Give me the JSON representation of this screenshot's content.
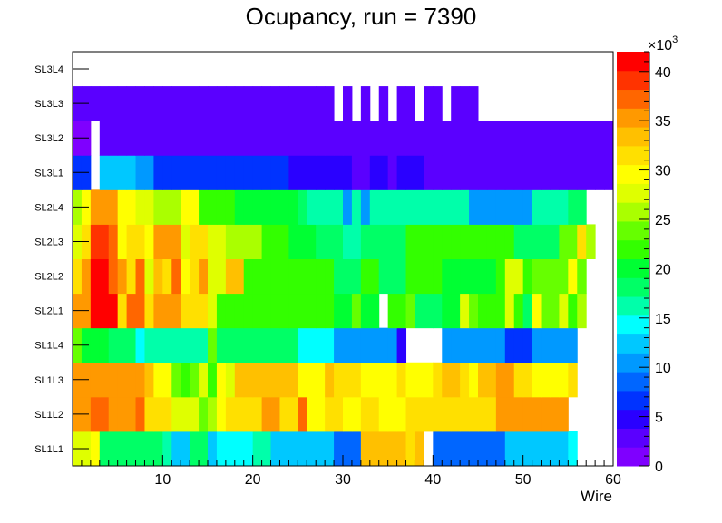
{
  "chart_data": {
    "type": "heatmap",
    "title": "Ocupancy, run = 7390",
    "xlabel": "Wire",
    "ylabel": "",
    "x_range": [
      0,
      60
    ],
    "x_ticks": [
      10,
      20,
      30,
      40,
      50,
      60
    ],
    "rows": [
      "SL1L1",
      "SL1L2",
      "SL1L3",
      "SL1L4",
      "SL2L1",
      "SL2L2",
      "SL2L3",
      "SL2L4",
      "SL3L1",
      "SL3L2",
      "SL3L3",
      "SL3L4"
    ],
    "z_range": [
      0,
      42
    ],
    "z_multiplier_label": "×10",
    "z_multiplier_exp": "3",
    "z_ticks": [
      "0",
      "5",
      "10",
      "15",
      "20",
      "25",
      "30",
      "35",
      "40"
    ],
    "palette": [
      "#7f00ff",
      "#5a00ff",
      "#2a00ff",
      "#0033ff",
      "#0066ff",
      "#0099ff",
      "#00c8ff",
      "#00ffff",
      "#00ffaa",
      "#00ff66",
      "#00ff33",
      "#33ff00",
      "#66ff00",
      "#aaff00",
      "#dfff00",
      "#ffff00",
      "#ffe000",
      "#ffc000",
      "#ff9900",
      "#ff6600",
      "#ff3300",
      "#ff0000"
    ],
    "z": [
      [
        28,
        28,
        29,
        18,
        18,
        18,
        18,
        18,
        18,
        18,
        16,
        13,
        13,
        19,
        18,
        12,
        14,
        14,
        14,
        14,
        16,
        16,
        12,
        12,
        12,
        12,
        12,
        12,
        12,
        9,
        9,
        9,
        33,
        33,
        33,
        33,
        33,
        31,
        33,
        null,
        8,
        8,
        8,
        8,
        8,
        8,
        8,
        8,
        12,
        12,
        12,
        12,
        12,
        12,
        12,
        14,
        null,
        null,
        null,
        null
      ],
      [
        36,
        36,
        37,
        37,
        35,
        35,
        35,
        37,
        32,
        32,
        32,
        27,
        27,
        27,
        23,
        25,
        29,
        32,
        32,
        32,
        32,
        35,
        35,
        32,
        32,
        37,
        30,
        30,
        31,
        31,
        30,
        30,
        31,
        31,
        30,
        30,
        30,
        32,
        32,
        32,
        32,
        32,
        32,
        32,
        32,
        32,
        32,
        35,
        35,
        35,
        35,
        35,
        35,
        35,
        35,
        null,
        null,
        null,
        null,
        null
      ],
      [
        36,
        36,
        36,
        36,
        35,
        35,
        35,
        35,
        33,
        30,
        30,
        24,
        22,
        24,
        28,
        21,
        30,
        27,
        33,
        33,
        33,
        33,
        33,
        33,
        33,
        29,
        30,
        30,
        33,
        31,
        31,
        31,
        29,
        29,
        29,
        29,
        32,
        29,
        29,
        29,
        32,
        33,
        33,
        32,
        30,
        33,
        33,
        35,
        35,
        32,
        32,
        30,
        30,
        30,
        30,
        31,
        null,
        null,
        null,
        null
      ],
      [
        23,
        20,
        20,
        20,
        18,
        18,
        18,
        15,
        17,
        17,
        17,
        17,
        17,
        17,
        17,
        24,
        19,
        19,
        19,
        19,
        19,
        19,
        19,
        19,
        19,
        15,
        15,
        15,
        15,
        10,
        10,
        10,
        10,
        10,
        10,
        10,
        4,
        null,
        null,
        null,
        null,
        10,
        10,
        10,
        10,
        10,
        10,
        10,
        7,
        7,
        7,
        10,
        10,
        10,
        10,
        10,
        null,
        null,
        null,
        null
      ],
      [
        35,
        35,
        41,
        41,
        41,
        32,
        37,
        37,
        31,
        35,
        35,
        35,
        32,
        32,
        32,
        28,
        21,
        21,
        21,
        22,
        22,
        22,
        21,
        21,
        21,
        21,
        21,
        21,
        21,
        20,
        20,
        23,
        20,
        20,
        null,
        21,
        21,
        24,
        19,
        19,
        19,
        20,
        20,
        27,
        24,
        21,
        21,
        22,
        27,
        21,
        19,
        29,
        24,
        24,
        27,
        22,
        25,
        null,
        null,
        null
      ],
      [
        31,
        35,
        41,
        41,
        38,
        36,
        32,
        37,
        28,
        33,
        32,
        37,
        30,
        32,
        36,
        27,
        27,
        33,
        33,
        21,
        21,
        21,
        21,
        21,
        21,
        22,
        21,
        21,
        21,
        18,
        18,
        18,
        21,
        21,
        18,
        18,
        18,
        21,
        21,
        21,
        21,
        20,
        20,
        20,
        20,
        20,
        20,
        22,
        27,
        27,
        21,
        24,
        24,
        24,
        24,
        29,
        23,
        null,
        null,
        null
      ],
      [
        27,
        31,
        40,
        40,
        38,
        29,
        32,
        32,
        30,
        35,
        35,
        35,
        28,
        32,
        32,
        27,
        27,
        26,
        26,
        26,
        26,
        22,
        22,
        22,
        20,
        20,
        20,
        18,
        18,
        18,
        16,
        16,
        18,
        18,
        18,
        18,
        18,
        22,
        22,
        22,
        22,
        22,
        22,
        22,
        22,
        22,
        22,
        22,
        22,
        18,
        18,
        18,
        18,
        18,
        24,
        24,
        32,
        26,
        null,
        null
      ],
      [
        25,
        29,
        35,
        35,
        35,
        30,
        30,
        27,
        27,
        26,
        26,
        26,
        30,
        30,
        22,
        22,
        22,
        22,
        20,
        20,
        20,
        20,
        20,
        20,
        20,
        18,
        16,
        16,
        16,
        16,
        10,
        16,
        10,
        16,
        16,
        16,
        16,
        16,
        16,
        16,
        16,
        16,
        16,
        16,
        10,
        10,
        10,
        10,
        10,
        10,
        10,
        16,
        16,
        16,
        16,
        18,
        18,
        null,
        null,
        null
      ],
      [
        6,
        6,
        null,
        12,
        12,
        12,
        12,
        10,
        10,
        7,
        7,
        7,
        7,
        7,
        7,
        7,
        7,
        7,
        7,
        7,
        7,
        7,
        7,
        7,
        4,
        4,
        4,
        4,
        4,
        4,
        4,
        3,
        3,
        4,
        4,
        3,
        4,
        4,
        4,
        3,
        3,
        3,
        3,
        3,
        3,
        3,
        3,
        3,
        3,
        3,
        3,
        3,
        3,
        2,
        2,
        2,
        2,
        2,
        2,
        2
      ],
      [
        1,
        1,
        null,
        2,
        2,
        2,
        2,
        2,
        2,
        2,
        2,
        2,
        2,
        2,
        2,
        2,
        2,
        2,
        2,
        2,
        2,
        2,
        2,
        2,
        2,
        2,
        2,
        2,
        2,
        2,
        2,
        2,
        2,
        2,
        2,
        2,
        2,
        2,
        2,
        2,
        2,
        2,
        2,
        2,
        2,
        2,
        2,
        2,
        2,
        2,
        2,
        2,
        2,
        2,
        2,
        2,
        2,
        2,
        2,
        2
      ],
      [
        2,
        2,
        2,
        2,
        2,
        2,
        2,
        2,
        2,
        2,
        2,
        2,
        2,
        2,
        2,
        2,
        2,
        2,
        2,
        2,
        2,
        2,
        2,
        2,
        2,
        2,
        2,
        2,
        2,
        null,
        2,
        null,
        2,
        null,
        2,
        null,
        2,
        2,
        null,
        2,
        2,
        null,
        2,
        2,
        2,
        null,
        null,
        null,
        null,
        null,
        null,
        null,
        null,
        null,
        null,
        null,
        null,
        null,
        null,
        null
      ],
      [
        null,
        null,
        null,
        null,
        null,
        null,
        null,
        null,
        null,
        null,
        null,
        null,
        null,
        null,
        null,
        null,
        null,
        null,
        null,
        null,
        null,
        null,
        null,
        null,
        null,
        null,
        null,
        null,
        null,
        null,
        null,
        null,
        null,
        null,
        null,
        null,
        null,
        null,
        null,
        null,
        null,
        null,
        null,
        null,
        null,
        null,
        null,
        null,
        null,
        null,
        null,
        null,
        null,
        null,
        null,
        null,
        null,
        null,
        null,
        null
      ]
    ]
  }
}
